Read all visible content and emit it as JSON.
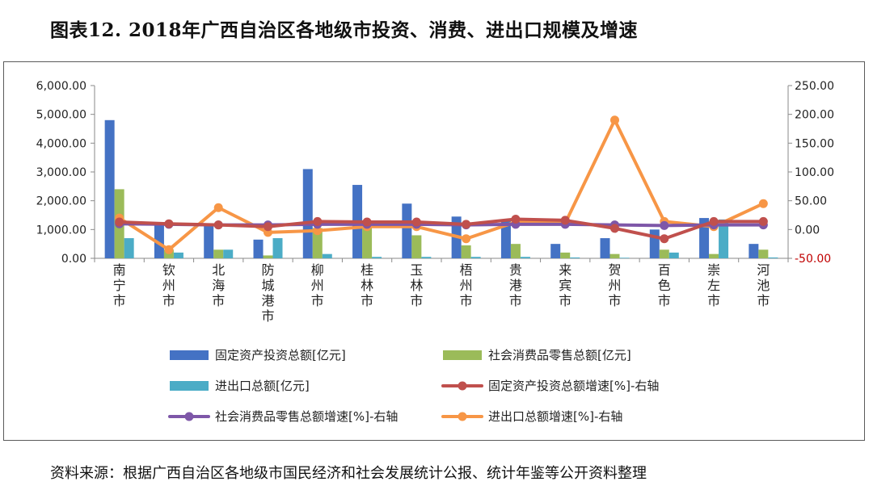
{
  "title": "图表12.   2018年广西自治区各地级市投资、消费、进出口规模及增速",
  "source": "资料来源：根据广西自治区各地级市国民经济和社会发展统计公报、统计年鉴等公开资料整理",
  "colors": {
    "investment": "#4472C4",
    "consumption": "#9BBB59",
    "trade": "#4BACC6",
    "investment_growth": "#C0504D",
    "consumption_growth": "#7E57A8",
    "trade_growth": "#F79646",
    "right_axis_negative": "#C00000"
  },
  "chart_data": {
    "type": "bar",
    "categories": [
      "南宁市",
      "钦州市",
      "北海市",
      "防城港市",
      "柳州市",
      "桂林市",
      "玉林市",
      "梧州市",
      "贵港市",
      "来宾市",
      "贺州市",
      "百色市",
      "崇左市",
      "河池市"
    ],
    "left_axis": {
      "ylim": [
        0,
        6000
      ],
      "ticks": [
        0,
        1000,
        2000,
        3000,
        4000,
        5000,
        6000
      ],
      "tick_labels": [
        "0.00",
        "1,000.00",
        "2,000.00",
        "3,000.00",
        "4,000.00",
        "5,000.00",
        "6,000.00"
      ]
    },
    "right_axis": {
      "ylim": [
        -50,
        250
      ],
      "ticks": [
        -50,
        0,
        50,
        100,
        150,
        200,
        250
      ],
      "tick_labels": [
        "-50.00",
        "0.00",
        "50.00",
        "100.00",
        "150.00",
        "200.00",
        "250.00"
      ]
    },
    "bar_series": [
      {
        "name": "固定资产投资总额[亿元]",
        "color_key": "investment",
        "values": [
          4800,
          1200,
          1200,
          650,
          3100,
          2550,
          1900,
          1450,
          1300,
          500,
          700,
          1000,
          1400,
          500
        ]
      },
      {
        "name": "社会消费品零售总额[亿元]",
        "color_key": "consumption",
        "values": [
          2400,
          300,
          300,
          100,
          1050,
          1050,
          800,
          450,
          500,
          200,
          150,
          300,
          150,
          300
        ]
      },
      {
        "name": "进出口总额[亿元]",
        "color_key": "trade",
        "values": [
          700,
          200,
          300,
          700,
          150,
          50,
          50,
          50,
          50,
          30,
          20,
          200,
          1350,
          30
        ]
      }
    ],
    "line_series": [
      {
        "name": "固定资产投资总额增速[%]-右轴",
        "color_key": "investment_growth",
        "values": [
          13,
          10,
          8,
          5,
          14,
          13,
          13,
          9,
          18,
          16,
          2,
          -16,
          14,
          14
        ]
      },
      {
        "name": "社会消费品零售总额增速[%]-右轴",
        "color_key": "consumption_growth",
        "values": [
          10,
          9,
          8,
          8,
          9,
          9,
          9,
          8,
          9,
          9,
          8,
          7,
          8,
          8
        ]
      },
      {
        "name": "进出口总额增速[%]-右轴",
        "color_key": "trade_growth",
        "values": [
          20,
          -35,
          38,
          -5,
          -2,
          5,
          5,
          -16,
          13,
          11,
          190,
          14,
          5,
          45
        ]
      }
    ]
  }
}
